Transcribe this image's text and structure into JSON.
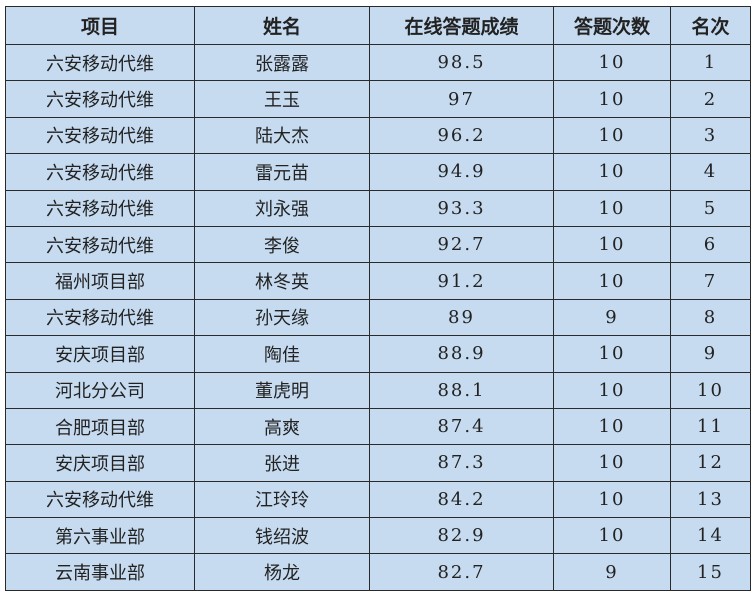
{
  "table": {
    "headers": [
      "项目",
      "姓名",
      "在线答题成绩",
      "答题次数",
      "名次"
    ],
    "rows": [
      [
        "六安移动代维",
        "张露露",
        "98.5",
        "10",
        "1"
      ],
      [
        "六安移动代维",
        "王玉",
        "97",
        "10",
        "2"
      ],
      [
        "六安移动代维",
        "陆大杰",
        "96.2",
        "10",
        "3"
      ],
      [
        "六安移动代维",
        "雷元苗",
        "94.9",
        "10",
        "4"
      ],
      [
        "六安移动代维",
        "刘永强",
        "93.3",
        "10",
        "5"
      ],
      [
        "六安移动代维",
        "李俊",
        "92.7",
        "10",
        "6"
      ],
      [
        "福州项目部",
        "林冬英",
        "91.2",
        "10",
        "7"
      ],
      [
        "六安移动代维",
        "孙天缘",
        "89",
        "9",
        "8"
      ],
      [
        "安庆项目部",
        "陶佳",
        "88.9",
        "10",
        "9"
      ],
      [
        "河北分公司",
        "董虎明",
        "88.1",
        "10",
        "10"
      ],
      [
        "合肥项目部",
        "高爽",
        "87.4",
        "10",
        "11"
      ],
      [
        "安庆项目部",
        "张进",
        "87.3",
        "10",
        "12"
      ],
      [
        "六安移动代维",
        "江玲玲",
        "84.2",
        "10",
        "13"
      ],
      [
        "第六事业部",
        "钱绍波",
        "82.9",
        "10",
        "14"
      ],
      [
        "云南事业部",
        "杨龙",
        "82.7",
        "9",
        "15"
      ]
    ]
  },
  "colors": {
    "cell_background": "#c6dbf0",
    "border": "#2a2a2a"
  }
}
